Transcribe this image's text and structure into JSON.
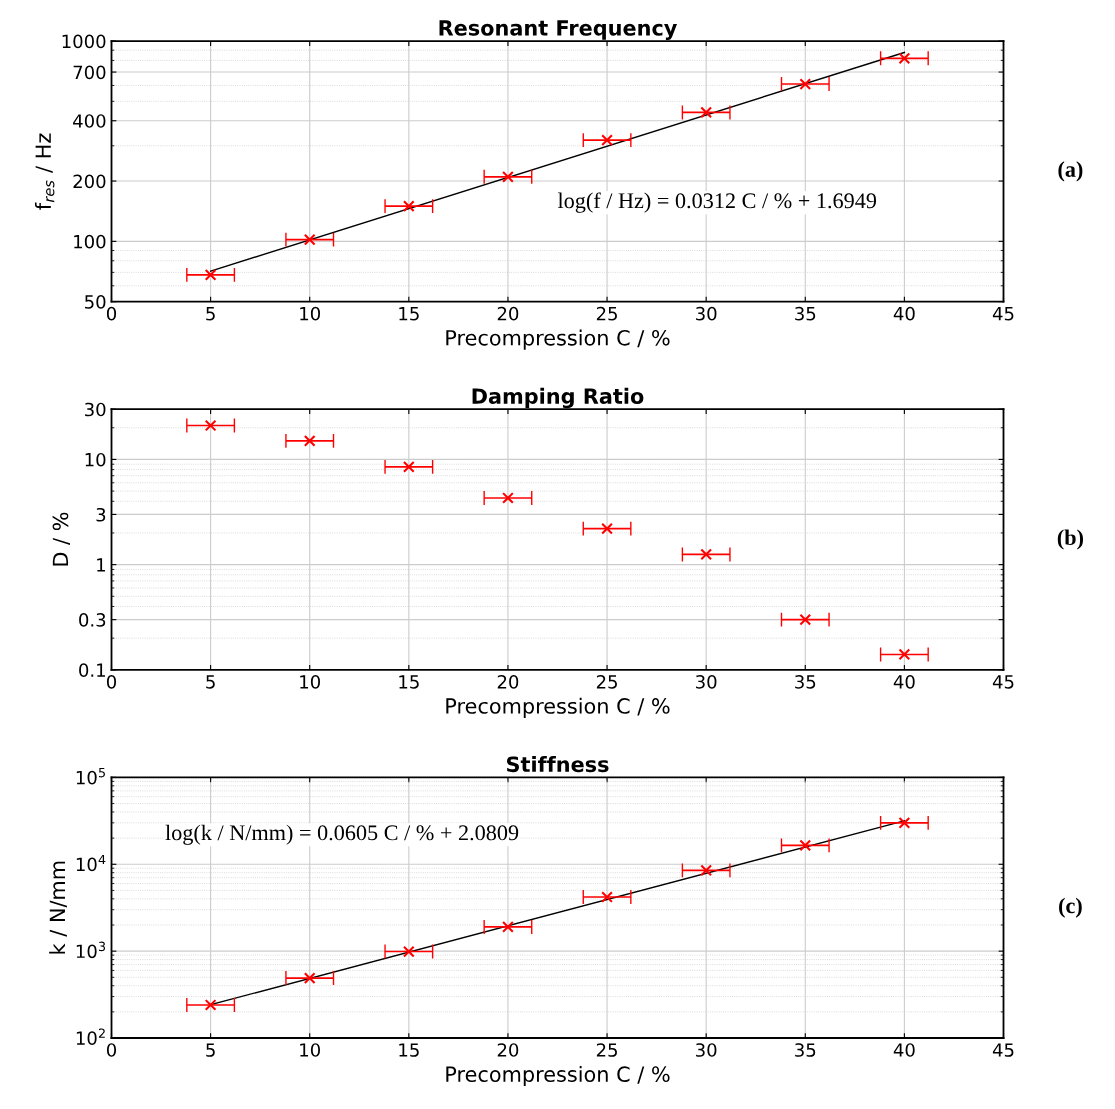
{
  "chart_data": [
    {
      "type": "scatter",
      "title": "Resonant Frequency",
      "xlabel": "Precompression C / %",
      "ylabel": "f$_{res}$ / Hz",
      "log": "y",
      "grid": true,
      "xlim": [
        0,
        45
      ],
      "xticks": [
        0,
        5,
        10,
        15,
        20,
        25,
        30,
        35,
        40,
        45
      ],
      "ylim": [
        50,
        1000
      ],
      "yticks": [
        50,
        100,
        200,
        400,
        700,
        1000
      ],
      "annotations": [
        "log(f / Hz) = 0.0312 C / % + 1.6949",
        "(a)"
      ],
      "series": [
        {
          "marker": "cross",
          "color": "#ff0000",
          "x": [
            5,
            10,
            15,
            20,
            25,
            30,
            35,
            40
          ],
          "values": [
            68,
            102,
            150,
            210,
            320,
            440,
            610,
            820
          ],
          "xerrors": [
            1.2,
            1.2,
            1.2,
            1.2,
            1.2,
            1.2,
            1.2,
            1.2
          ]
        },
        {
          "type": "line",
          "color": "#000000",
          "x": [
            5,
            40
          ],
          "values": [
            71,
            877
          ]
        }
      ]
    },
    {
      "type": "scatter",
      "title": "Damping Ratio",
      "xlabel": "Precompression C / %",
      "ylabel": "D / %",
      "log": "y",
      "grid": true,
      "marker": "cross",
      "xlim": [
        0,
        45
      ],
      "xticks": [
        0,
        5,
        10,
        15,
        20,
        25,
        30,
        35,
        40,
        45
      ],
      "ylim": [
        0.1,
        30
      ],
      "yticks": [
        0.1,
        0.3,
        1,
        3,
        10,
        30
      ],
      "annotations": [
        "(b)"
      ],
      "series": [
        {
          "color": "#ff0000",
          "x": [
            5,
            10,
            15,
            20,
            25,
            30,
            35,
            40
          ],
          "values": [
            21,
            15,
            8.5,
            4.3,
            2.2,
            1.25,
            0.3,
            0.14
          ],
          "xerrors": [
            1.2,
            1.2,
            1.2,
            1.2,
            1.2,
            1.2,
            1.2,
            1.2
          ]
        }
      ]
    },
    {
      "type": "scatter",
      "title": "Stiffness",
      "xlabel": "Precompression C / %",
      "ylabel": "k / N/mm",
      "log": "y",
      "grid": true,
      "xlim": [
        0,
        45
      ],
      "xticks": [
        0,
        5,
        10,
        15,
        20,
        25,
        30,
        35,
        40,
        45
      ],
      "ylim": [
        100,
        100000
      ],
      "yticks": [
        {
          "value": 100,
          "label": "10$^{2}$"
        },
        {
          "value": 1000,
          "label": "10$^{3}$"
        },
        {
          "value": 10000,
          "label": "10$^{4}$"
        },
        {
          "value": 100000,
          "label": "10$^{5}$"
        }
      ],
      "annotations": [
        "log(k / N/mm) = 0.0605 C / % + 2.0809",
        "(c)"
      ],
      "series": [
        {
          "marker": "cross",
          "color": "#ff0000",
          "x": [
            5,
            10,
            15,
            20,
            25,
            30,
            35,
            40
          ],
          "values": [
            240,
            490,
            990,
            1900,
            4200,
            8500,
            16500,
            30000
          ],
          "xerrors": [
            1.2,
            1.2,
            1.2,
            1.2,
            1.2,
            1.2,
            1.2,
            1.2
          ]
        },
        {
          "type": "line",
          "color": "#000000",
          "x": [
            5,
            40
          ],
          "values": [
            242,
            31700
          ]
        }
      ]
    }
  ]
}
